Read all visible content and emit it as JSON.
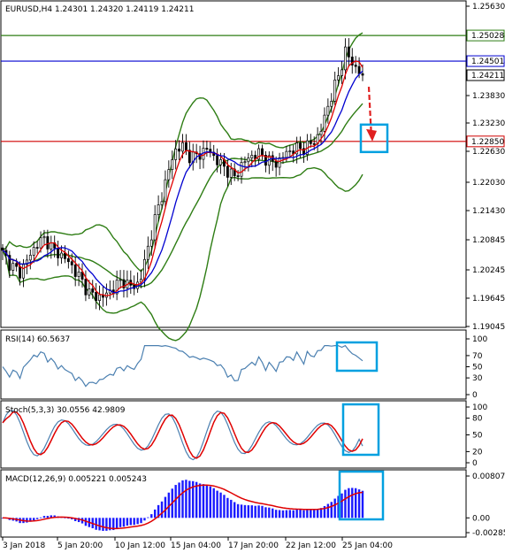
{
  "colors": {
    "background": "#ffffff",
    "frame": "#000000",
    "candle": "#000000",
    "bollinger": "#2e7d14",
    "ma_fast": "#e00000",
    "ma_slow": "#0000d0",
    "level_green": "#2e7d14",
    "level_blue": "#0000d0",
    "level_red": "#d00000",
    "rsi_line": "#4a7fb0",
    "stoch_main": "#4a7fb0",
    "stoch_signal": "#e00000",
    "macd_hist": "#1a1aff",
    "macd_signal": "#e00000",
    "highlight_box": "#00a0e0",
    "forecast_arrow": "#e02020"
  },
  "header": {
    "title": "EURUSD,H4  1.24301 1.24320 1.24119 1.24211"
  },
  "price_axis": {
    "ticks": [
      "1.25630",
      "1.24980",
      "1.24430",
      "1.23830",
      "1.23230",
      "1.22630",
      "1.22030",
      "1.21430",
      "1.20845",
      "1.20245",
      "1.19645",
      "1.19045"
    ]
  },
  "levels": [
    {
      "name": "level-green",
      "label": "1.25028",
      "value": 1.25028
    },
    {
      "name": "level-blue",
      "label": "1.24501",
      "value": 1.24501
    },
    {
      "name": "level-red",
      "label": "1.22850",
      "value": 1.2285
    }
  ],
  "current_price": {
    "label": "1.24211",
    "value": 1.24211
  },
  "rsi": {
    "title": "RSI(14) 60.5637",
    "ticks": [
      "100",
      "70",
      "50",
      "30",
      "0"
    ]
  },
  "stoch": {
    "title": "Stoch(5,3,3) 30.0556 42.9809",
    "ticks": [
      "100",
      "80",
      "50",
      "20",
      "0"
    ]
  },
  "macd": {
    "title": "MACD(12,26,9) 0.005221 0.005243",
    "ticks": [
      "0.008072",
      "0.00",
      "-0.002851"
    ]
  },
  "time_axis": {
    "labels": [
      "3 Jan 2018",
      "5 Jan 20:00",
      "10 Jan 12:00",
      "15 Jan 04:00",
      "17 Jan 20:00",
      "22 Jan 12:00",
      "25 Jan 04:00"
    ]
  },
  "chart_data": {
    "type": "candlestick",
    "symbol": "EURUSD",
    "timeframe": "H4",
    "ohlc_last": {
      "open": 1.24301,
      "high": 1.2432,
      "low": 1.24119,
      "close": 1.24211
    },
    "ylim": [
      1.19045,
      1.2563
    ],
    "close_path": [
      1.2055,
      1.203,
      1.2015,
      1.2045,
      1.2075,
      1.2085,
      1.206,
      1.205,
      1.203,
      1.2005,
      1.1975,
      1.1965,
      1.1968,
      1.1985,
      1.2,
      1.1985,
      1.1995,
      1.207,
      1.214,
      1.22,
      1.2265,
      1.2275,
      1.225,
      1.226,
      1.227,
      1.2245,
      1.223,
      1.221,
      1.224,
      1.2255,
      1.226,
      1.2245,
      1.224,
      1.226,
      1.227,
      1.227,
      1.228,
      1.23,
      1.236,
      1.241,
      1.247,
      1.244,
      1.2421
    ],
    "forecast_target": 1.2285,
    "rsi": {
      "value": 60.5637,
      "ylim": [
        0,
        100
      ],
      "levels": [
        70,
        30
      ]
    },
    "stoch": {
      "main": 30.0556,
      "signal": 42.9809,
      "ylim": [
        0,
        100
      ],
      "levels": [
        80,
        20
      ]
    },
    "macd": {
      "main": 0.005221,
      "signal": 0.005243,
      "ylim": [
        -0.002851,
        0.008072
      ]
    }
  }
}
